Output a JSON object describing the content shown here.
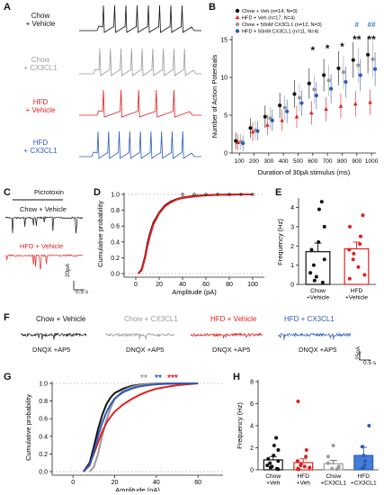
{
  "colors": {
    "chow_veh": "#111111",
    "chow_cx3": "#9a9a9a",
    "hfd_veh": "#e02020",
    "hfd_cx3": "#2f5bb7",
    "sig_blue": "#3f7fd0"
  },
  "panels": {
    "A": {
      "letter": "A",
      "labels": [
        {
          "line1": "Chow",
          "line2": "+ Vehicle",
          "color": "#111111"
        },
        {
          "line1": "Chow",
          "line2": "+ CX3CL1",
          "color": "#9a9a9a"
        },
        {
          "line1": "HFD",
          "line2": "+ Vehicle",
          "color": "#e02020"
        },
        {
          "line1": "HFD",
          "line2": "+ CX3CL1",
          "color": "#2f5bb7"
        }
      ]
    },
    "B": {
      "letter": "B"
    },
    "C": {
      "letter": "C",
      "title": "Picrotoxin",
      "trace1": "Chow + Vehicle",
      "trace2": "HFD + Vehicle",
      "scale_y": "20pA",
      "scale_x": "0.5 s"
    },
    "D": {
      "letter": "D"
    },
    "E": {
      "letter": "E"
    },
    "F": {
      "letter": "F",
      "conditions": [
        "Chow + Vehicle",
        "Chow + CX3CL1",
        "HFD + Vehicle",
        "HFD + CX3CL1"
      ],
      "subtitle": "DNQX +AP5",
      "scale_y": "25pA",
      "scale_x": "0.5 s"
    },
    "G": {
      "letter": "G"
    },
    "H": {
      "letter": "H"
    }
  },
  "chart_data": [
    {
      "panel": "B",
      "type": "scatter",
      "xlabel": "Duration of 30pA stimulus (ms)",
      "ylabel": "Number of Action Potentials",
      "xticks": [
        "100",
        "200",
        "300",
        "400",
        "500",
        "600",
        "700",
        "800",
        "900",
        "1000"
      ],
      "yticks": [
        "0",
        "5",
        "10",
        "15"
      ],
      "ylim": [
        0,
        15
      ],
      "legend": [
        "Chow + Veh (n=14, N=3)",
        "HFD + Veh (n=17, N=4)",
        "Chow + 50nM CX3CL1 (n=12, N=3)",
        "HFD + 50nM CX3CL1 (n=11, N=4)"
      ],
      "x": [
        100,
        200,
        300,
        400,
        500,
        600,
        700,
        800,
        900,
        1000
      ],
      "series": [
        {
          "name": "Chow + Veh (n=14, N=3)",
          "color": "#111111",
          "values": [
            1.6,
            3.3,
            4.8,
            6.3,
            7.8,
            9.2,
            10.3,
            11.2,
            12.3,
            13.0
          ]
        },
        {
          "name": "HFD + Veh (n=17, N=4)",
          "color": "#e02020",
          "values": [
            1.4,
            2.8,
            3.7,
            4.3,
            4.8,
            5.3,
            5.8,
            6.2,
            6.5,
            6.7
          ]
        },
        {
          "name": "Chow + 50nM CX3CL1 (n=12, N=3)",
          "color": "#9a9a9a",
          "values": [
            1.5,
            3.0,
            4.6,
            6.0,
            7.3,
            8.4,
            9.6,
            10.7,
            11.6,
            12.4
          ]
        },
        {
          "name": "HFD + 50nM CX3CL1 (n=11, N=4)",
          "color": "#2f5bb7",
          "values": [
            1.3,
            2.9,
            4.3,
            5.5,
            6.6,
            7.6,
            8.5,
            9.4,
            10.3,
            11.1
          ]
        }
      ],
      "significance": [
        {
          "x": 600,
          "mark": "*",
          "color": "#111111"
        },
        {
          "x": 700,
          "mark": "*",
          "color": "#111111"
        },
        {
          "x": 800,
          "mark": "*",
          "color": "#111111"
        },
        {
          "x": 900,
          "mark": "**",
          "color": "#111111"
        },
        {
          "x": 1000,
          "mark": "**",
          "color": "#111111"
        },
        {
          "x": 900,
          "mark": "#",
          "color": "#3f7fd0"
        },
        {
          "x": 1000,
          "mark": "##",
          "color": "#3f7fd0"
        }
      ]
    },
    {
      "panel": "D",
      "type": "line",
      "xlabel": "Amplitude (pA)",
      "ylabel": "Cumulative probability",
      "xticks": [
        "0",
        "20",
        "40",
        "60",
        "80",
        "100"
      ],
      "yticks": [
        "0.0",
        "0.2",
        "0.4",
        "0.6",
        "0.8",
        "1.0"
      ],
      "xlim": [
        -10,
        110
      ],
      "ylim": [
        0,
        1
      ],
      "series": [
        {
          "name": "Chow + Vehicle",
          "color": "#111111",
          "x": [
            2,
            5,
            8,
            10,
            12,
            15,
            20,
            25,
            30,
            35,
            40,
            50,
            60,
            70,
            80,
            90,
            100
          ],
          "y": [
            0.0,
            0.05,
            0.22,
            0.38,
            0.5,
            0.64,
            0.77,
            0.86,
            0.91,
            0.94,
            0.96,
            0.98,
            0.99,
            0.995,
            0.998,
            1.0,
            1.0
          ]
        },
        {
          "name": "HFD + Vehicle",
          "color": "#e02020",
          "x": [
            2,
            5,
            8,
            10,
            12,
            15,
            20,
            25,
            30,
            35,
            40,
            50,
            60,
            70,
            80,
            90,
            100
          ],
          "y": [
            0.0,
            0.04,
            0.2,
            0.35,
            0.47,
            0.62,
            0.76,
            0.85,
            0.9,
            0.935,
            0.955,
            0.975,
            0.988,
            0.994,
            0.998,
            1.0,
            1.0
          ]
        }
      ]
    },
    {
      "panel": "E",
      "type": "bar",
      "ylabel": "Frequency (Hz)",
      "yticks": [
        "0",
        "1",
        "2",
        "3",
        "4"
      ],
      "ylim": [
        0,
        4.4
      ],
      "categories": [
        "Chow + Vehicle",
        "HFD + Vehicle"
      ],
      "values": [
        1.7,
        1.85
      ],
      "errors": [
        0.45,
        0.35
      ],
      "colors": [
        "#111111",
        "#e02020"
      ],
      "points": [
        [
          4.3,
          3.9,
          3.0,
          2.2,
          1.8,
          1.3,
          1.0,
          0.6,
          0.4,
          0.2,
          0.1
        ],
        [
          3.6,
          3.0,
          2.5,
          2.1,
          1.8,
          1.6,
          1.3,
          0.9,
          0.5,
          0.3
        ]
      ]
    },
    {
      "panel": "G",
      "type": "line",
      "xlabel": "Amplitude (pA)",
      "ylabel": "Cumulative probability",
      "xticks": [
        "0",
        "20",
        "40",
        "60"
      ],
      "yticks": [
        "0.0",
        "0.2",
        "0.4",
        "0.6",
        "0.8",
        "1.0"
      ],
      "xlim": [
        -10,
        72
      ],
      "ylim": [
        0,
        1
      ],
      "series": [
        {
          "name": "Chow + Vehicle",
          "color": "#111111",
          "x": [
            5,
            8,
            10,
            12,
            14,
            16,
            18,
            20,
            24,
            28,
            32,
            36,
            40,
            50,
            60
          ],
          "y": [
            0.0,
            0.1,
            0.28,
            0.48,
            0.64,
            0.76,
            0.84,
            0.89,
            0.94,
            0.97,
            0.985,
            0.993,
            0.997,
            1.0,
            1.0
          ]
        },
        {
          "name": "Chow + CX3CL1",
          "color": "#9a9a9a",
          "x": [
            8,
            10,
            12,
            14,
            16,
            18,
            20,
            24,
            28,
            32,
            36,
            40,
            50,
            60
          ],
          "y": [
            0.0,
            0.05,
            0.2,
            0.4,
            0.58,
            0.72,
            0.82,
            0.92,
            0.96,
            0.98,
            0.99,
            0.995,
            1.0,
            1.0
          ]
        },
        {
          "name": "HFD + Vehicle",
          "color": "#e02020",
          "x": [
            5,
            8,
            10,
            12,
            14,
            16,
            18,
            20,
            24,
            28,
            32,
            36,
            40,
            45,
            50,
            55,
            60
          ],
          "y": [
            0.0,
            0.08,
            0.2,
            0.33,
            0.45,
            0.55,
            0.62,
            0.68,
            0.76,
            0.82,
            0.87,
            0.91,
            0.94,
            0.96,
            0.98,
            0.99,
            1.0
          ]
        },
        {
          "name": "HFD + CX3CL1",
          "color": "#2f5bb7",
          "x": [
            5,
            8,
            10,
            12,
            14,
            16,
            18,
            20,
            24,
            28,
            32,
            36,
            40,
            50,
            60
          ],
          "y": [
            0.0,
            0.07,
            0.22,
            0.4,
            0.55,
            0.67,
            0.76,
            0.83,
            0.9,
            0.94,
            0.965,
            0.98,
            0.99,
            1.0,
            1.0
          ]
        }
      ],
      "significance": [
        {
          "mark": "**",
          "color": "#9a9a9a"
        },
        {
          "mark": "**",
          "color": "#2f5bb7"
        },
        {
          "mark": "***",
          "color": "#e02020"
        }
      ]
    },
    {
      "panel": "H",
      "type": "bar",
      "ylabel": "Frequency (Hz)",
      "yticks": [
        "0",
        "2",
        "4",
        "6",
        "8"
      ],
      "ylim": [
        0,
        8
      ],
      "categories": [
        "Chow + Veh",
        "HFD + Veh",
        "Chow + CX3CL1",
        "HFD + CX3CL1"
      ],
      "values": [
        0.9,
        0.65,
        0.55,
        1.3
      ],
      "errors": [
        0.3,
        0.35,
        0.3,
        0.75
      ],
      "colors": [
        "#111111",
        "#e02020",
        "#9a9a9a",
        "#2f5bb7"
      ],
      "points": [
        [
          2.9,
          2.2,
          1.8,
          1.3,
          1.0,
          0.8,
          0.6,
          0.4,
          0.3,
          0.2,
          0.1,
          0.05
        ],
        [
          6.2,
          1.8,
          1.2,
          0.8,
          0.5,
          0.4,
          0.3,
          0.2,
          0.1,
          0.05,
          0.05
        ],
        [
          2.2,
          1.2,
          0.6,
          0.3,
          0.2,
          0.1,
          0.05
        ],
        [
          4.0,
          2.1,
          1.3,
          0.8,
          0.4,
          0.2,
          0.1
        ]
      ]
    }
  ]
}
